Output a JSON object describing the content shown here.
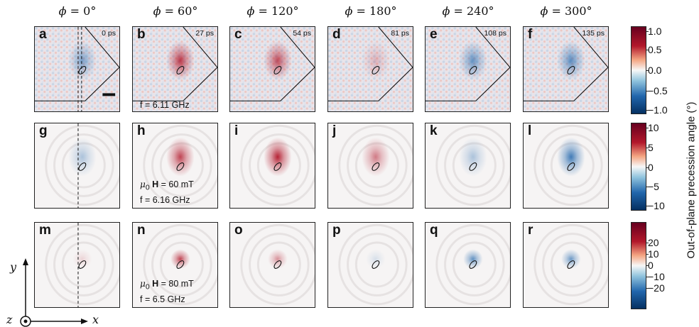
{
  "columns": [
    {
      "phi_symbol": "ϕ",
      "angle": "= 0°"
    },
    {
      "phi_symbol": "ϕ",
      "angle": "= 60°"
    },
    {
      "phi_symbol": "ϕ",
      "angle": "= 120°"
    },
    {
      "phi_symbol": "ϕ",
      "angle": "= 180°"
    },
    {
      "phi_symbol": "ϕ",
      "angle": "= 240°"
    },
    {
      "phi_symbol": "ϕ",
      "angle": "= 300°"
    }
  ],
  "rows": [
    {
      "labels": [
        "a",
        "b",
        "c",
        "d",
        "e",
        "f"
      ],
      "times": [
        "0 ps",
        "27 ps",
        "54 ps",
        "81 ps",
        "108 ps",
        "135 ps"
      ],
      "frequency": "f = 6.11 GHz",
      "phase_amplitude": [
        -0.55,
        0.85,
        0.75,
        0.25,
        -0.65,
        -0.7
      ],
      "colorbar_ticks": [
        "1.0",
        "0.5",
        "0.0",
        "−0.5",
        "−1.0"
      ]
    },
    {
      "labels": [
        "g",
        "h",
        "i",
        "j",
        "k",
        "l"
      ],
      "field": {
        "mu": "μ",
        "sub": "0",
        "H": "H",
        "value": " = 60 mT"
      },
      "frequency": "f = 6.16 GHz",
      "phase_amplitude": [
        -0.35,
        0.8,
        0.95,
        0.55,
        -0.35,
        -0.85
      ],
      "colorbar_ticks": [
        "10",
        "5",
        "0",
        "−5",
        "−10"
      ]
    },
    {
      "labels": [
        "m",
        "n",
        "o",
        "p",
        "q",
        "r"
      ],
      "field": {
        "mu": "μ",
        "sub": "0",
        "H": "H",
        "value": " = 80 mT"
      },
      "frequency": "f = 6.5 GHz",
      "phase_amplitude": [
        0.15,
        0.8,
        0.45,
        -0.15,
        -0.7,
        -0.65
      ],
      "colorbar_ticks": [
        "20",
        "10",
        "0",
        "−10",
        "−20"
      ]
    }
  ],
  "colorbar_label": "Out-of-plane precession angle (°)",
  "axes": {
    "x": "x",
    "y": "y",
    "z": "z"
  },
  "colors": {
    "positive": "#b2182b",
    "negative": "#2166ac",
    "neutral": "#f7f7f7"
  }
}
